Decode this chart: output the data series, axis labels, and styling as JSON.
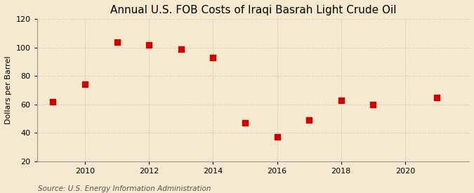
{
  "title": "Annual U.S. FOB Costs of Iraqi Basrah Light Crude Oil",
  "ylabel": "Dollars per Barrel",
  "source": "Source: U.S. Energy Information Administration",
  "background_color": "#f5e9d0",
  "plot_bg_color": "#f5e9d0",
  "years": [
    2009,
    2010,
    2011,
    2012,
    2013,
    2014,
    2015,
    2016,
    2017,
    2018,
    2019,
    2021
  ],
  "values": [
    62,
    74,
    104,
    102,
    99,
    93,
    47,
    37,
    49,
    63,
    60,
    65
  ],
  "marker_color": "#cc0000",
  "marker": "s",
  "marker_size": 4,
  "ylim": [
    20,
    120
  ],
  "yticks": [
    20,
    40,
    60,
    80,
    100,
    120
  ],
  "xlim": [
    2008.5,
    2022.0
  ],
  "xticks": [
    2010,
    2012,
    2014,
    2016,
    2018,
    2020
  ],
  "grid_color": "#bbbbbb",
  "grid_style": ":",
  "title_fontsize": 11,
  "label_fontsize": 8,
  "tick_fontsize": 8,
  "source_fontsize": 7.5
}
